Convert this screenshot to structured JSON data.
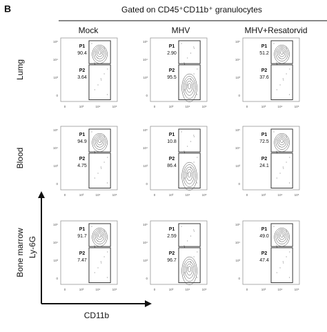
{
  "panel_label": "B",
  "header": "Gated on CD45⁺CD11b⁺ granulocytes",
  "columns": [
    "Mock",
    "MHV",
    "MHV+Resatorvid"
  ],
  "rows": [
    "Lumg",
    "Blood",
    "Bone marrow"
  ],
  "y_axis_label": "Ly-6G",
  "x_axis_label": "CD11b",
  "axis_ticks": [
    "0",
    "10³",
    "10⁴",
    "10⁵"
  ],
  "plots": [
    [
      {
        "gates": [
          {
            "label": "P1",
            "value": "90.4"
          },
          {
            "label": "P2",
            "value": "3.64"
          }
        ]
      },
      {
        "gates": [
          {
            "label": "P1",
            "value": "2.90"
          },
          {
            "label": "P2",
            "value": "95.5"
          }
        ]
      },
      {
        "gates": [
          {
            "label": "P1",
            "value": "51.2"
          },
          {
            "label": "P2",
            "value": "37.6"
          }
        ]
      }
    ],
    [
      {
        "gates": [
          {
            "label": "P1",
            "value": "94.9"
          },
          {
            "label": "P2",
            "value": "4.75"
          }
        ]
      },
      {
        "gates": [
          {
            "label": "P1",
            "value": "10.8"
          },
          {
            "label": "P2",
            "value": "86.4"
          }
        ]
      },
      {
        "gates": [
          {
            "label": "P1",
            "value": "72.5"
          },
          {
            "label": "P2",
            "value": "24.1"
          }
        ]
      }
    ],
    [
      {
        "gates": [
          {
            "label": "P1",
            "value": "91.7"
          },
          {
            "label": "P2",
            "value": "7.47"
          }
        ]
      },
      {
        "gates": [
          {
            "label": "P1",
            "value": "2.59"
          },
          {
            "label": "P2",
            "value": "96.7"
          }
        ]
      },
      {
        "gates": [
          {
            "label": "P1",
            "value": "49.0"
          },
          {
            "label": "P2",
            "value": "47.4"
          }
        ]
      }
    ]
  ]
}
